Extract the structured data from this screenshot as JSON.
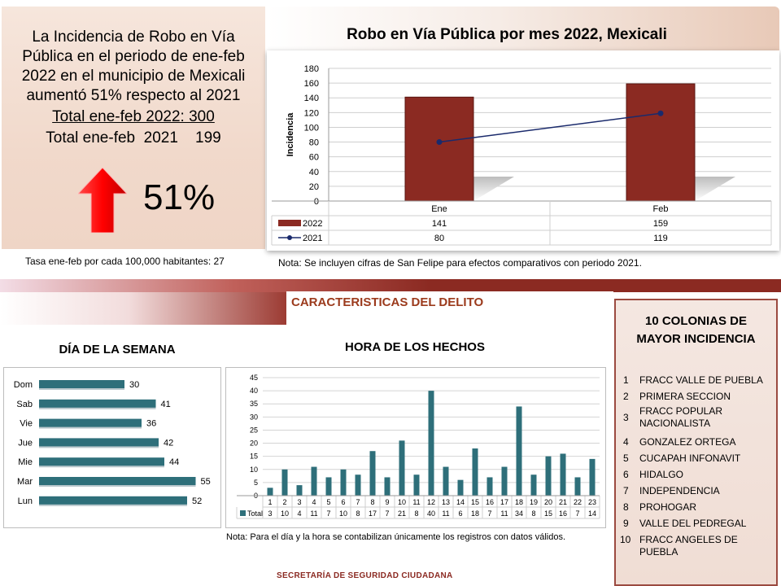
{
  "summary": {
    "line1": "La Incidencia de Robo en Vía",
    "line2": "Pública en el periodo de ene-feb",
    "line3": "2022 en el municipio de Mexicali",
    "line4": "aumentó 51% respecto al 2021",
    "line5": "Total ene-feb  2022:  300",
    "line6": "Total ene-feb  2021    199",
    "percent": "51%",
    "arrow_icon": "up-arrow-icon",
    "rate": "Tasa ene-feb por cada 100,000  habitantes: 27"
  },
  "sections": {
    "caracteristicas": "CARACTERISTICAS DEL DELITO",
    "dow_title": "DÍA DE LA SEMANA",
    "hour_title": "HORA DE LOS HECHOS",
    "hour_note": "Nota:  Para el día y la hora se contabilizan únicamente los registros con datos válidos.",
    "footer": "SECRETARÍA DE SEGURIDAD CIUDADANA"
  },
  "colonias": {
    "title_line1": "10 COLONIAS DE",
    "title_line2": "MAYOR INCIDENCIA",
    "items": [
      {
        "n": "1",
        "name": "FRACC VALLE DE PUEBLA"
      },
      {
        "n": "2",
        "name": "PRIMERA SECCION"
      },
      {
        "n": "3",
        "name": "FRACC POPULAR NACIONALISTA"
      },
      {
        "n": "4",
        "name": "GONZALEZ ORTEGA"
      },
      {
        "n": "5",
        "name": "CUCAPAH INFONAVIT"
      },
      {
        "n": "6",
        "name": "HIDALGO"
      },
      {
        "n": "7",
        "name": "INDEPENDENCIA"
      },
      {
        "n": "8",
        "name": "PROHOGAR"
      },
      {
        "n": "9",
        "name": "VALLE DEL PEDREGAL"
      },
      {
        "n": "10",
        "name": "FRACC ANGELES DE PUEBLA"
      }
    ]
  },
  "chart_data": [
    {
      "type": "bar",
      "title": "Robo en Vía Pública por mes 2022, Mexicali",
      "ylabel": "Incidencia",
      "categories": [
        "Ene",
        "Feb"
      ],
      "series": [
        {
          "name": "2022",
          "type": "bar",
          "values": [
            141,
            159
          ],
          "color": "#8b2a22"
        },
        {
          "name": "2021",
          "type": "line",
          "values": [
            80,
            119
          ],
          "color": "#1a2a6c"
        }
      ],
      "ylim": [
        0,
        180
      ],
      "yticks": [
        0,
        20,
        40,
        60,
        80,
        100,
        120,
        140,
        160,
        180
      ],
      "grid": true,
      "legend": "data table",
      "note": "Nota: Se incluyen cifras de San Felipe para efectos comparativos con  periodo 2021."
    },
    {
      "type": "bar",
      "orientation": "horizontal",
      "categories": [
        "Dom",
        "Sab",
        "Vie",
        "Jue",
        "Mie",
        "Mar",
        "Lun"
      ],
      "values": [
        30,
        41,
        36,
        42,
        44,
        55,
        52
      ],
      "color": "#2e6f7a"
    },
    {
      "type": "bar",
      "categories": [
        "1",
        "2",
        "3",
        "4",
        "5",
        "6",
        "7",
        "8",
        "9",
        "10",
        "11",
        "12",
        "13",
        "14",
        "15",
        "16",
        "17",
        "18",
        "19",
        "20",
        "21",
        "22",
        "23"
      ],
      "series": [
        {
          "name": "Total",
          "values": [
            3,
            10,
            4,
            11,
            7,
            10,
            8,
            17,
            7,
            21,
            8,
            40,
            11,
            6,
            18,
            7,
            11,
            34,
            8,
            15,
            16,
            7,
            14
          ]
        }
      ],
      "ylim": [
        0,
        45
      ],
      "yticks": [
        0,
        5,
        10,
        15,
        20,
        25,
        30,
        35,
        40,
        45
      ],
      "grid": true,
      "legend": "data table",
      "color": "#2e6f7a"
    }
  ]
}
